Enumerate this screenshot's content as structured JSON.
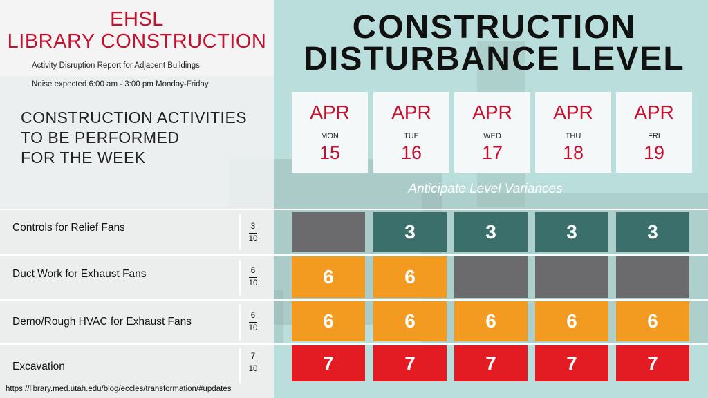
{
  "header": {
    "title_line1": "EHSL",
    "title_line2": "LIBRARY CONSTRUCTION",
    "subtitle": "Activity Disruption Report for Adjacent Buildings",
    "noise_note": "Noise expected 6:00 am - 3:00 pm Monday-Friday"
  },
  "activities_heading": "CONSTRUCTION ACTIVITIES\nTO BE PERFORMED\nFOR THE WEEK",
  "main_title_line1": "CONSTRUCTION",
  "main_title_line2": "DISTURBANCE LEVEL",
  "days": [
    {
      "month": "APR",
      "weekday": "MON",
      "date": "15"
    },
    {
      "month": "APR",
      "weekday": "TUE",
      "date": "16"
    },
    {
      "month": "APR",
      "weekday": "WED",
      "date": "17"
    },
    {
      "month": "APR",
      "weekday": "THU",
      "date": "18"
    },
    {
      "month": "APR",
      "weekday": "FRI",
      "date": "19"
    }
  ],
  "anticipate_label": "Anticipate Level Variances",
  "activities": [
    {
      "name": "Controls for Relief Fans",
      "level": "3",
      "max": "10",
      "cells": [
        "",
        "3",
        "3",
        "3",
        "3"
      ]
    },
    {
      "name": "Duct Work for Exhaust Fans",
      "level": "6",
      "max": "10",
      "cells": [
        "6",
        "6",
        "",
        "",
        ""
      ]
    },
    {
      "name": "Demo/Rough HVAC for Exhaust Fans",
      "level": "6",
      "max": "10",
      "cells": [
        "6",
        "6",
        "6",
        "6",
        "6"
      ]
    },
    {
      "name": "Excavation",
      "level": "7",
      "max": "10",
      "cells": [
        "7",
        "7",
        "7",
        "7",
        "7"
      ]
    }
  ],
  "colors": {
    "inactive": "#6b6b6e",
    "level_3": "#3b6f6b",
    "level_6": "#f39a21",
    "level_7": "#e31b23",
    "accent_red": "#c8102e"
  },
  "footer_url": "https://library.med.utah.edu/blog/eccles/transformation/#updates"
}
